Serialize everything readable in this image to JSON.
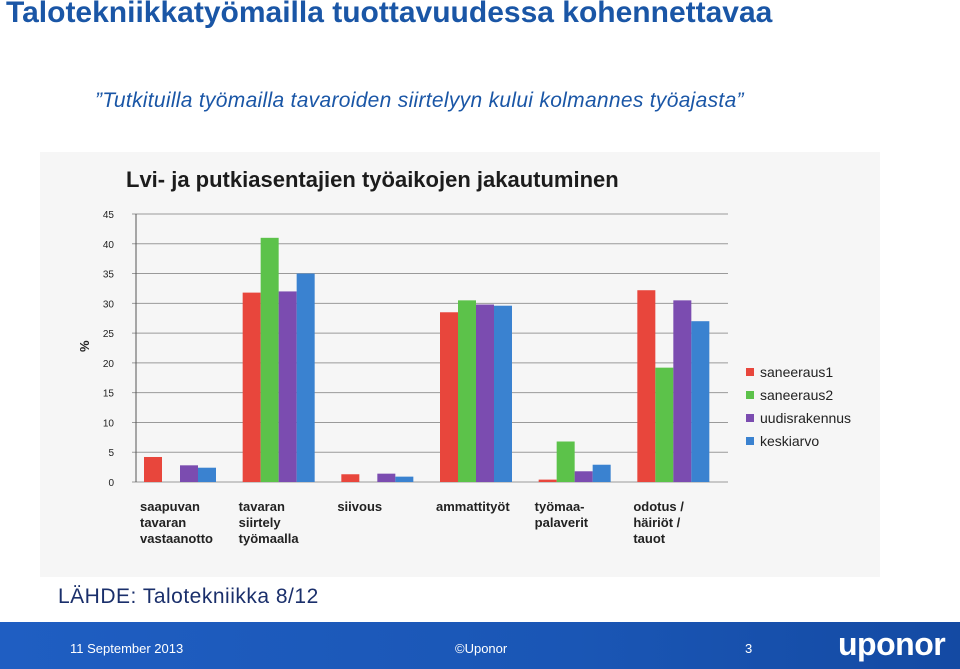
{
  "slide": {
    "title": "Talotekniikkatyömailla tuottavuudessa kohennettavaa",
    "quote": "”Tutkituilla työmailla tavaroiden siirtelyyn kului kolmannes työajasta”",
    "source": "LÄHDE: Talotekniikka 8/12"
  },
  "footer": {
    "date": "11 September 2013",
    "copyright": "©Uponor",
    "page": "3",
    "logo": "uponor"
  },
  "chart_data": {
    "type": "bar",
    "title": "Lvi- ja putkiasentajien työaikojen jakautuminen",
    "ylabel": "%",
    "ylim": [
      0,
      45
    ],
    "yticks": [
      0,
      5,
      10,
      15,
      20,
      25,
      30,
      35,
      40,
      45
    ],
    "categories": [
      [
        "saapuvan",
        "tavaran",
        "vastaanotto"
      ],
      [
        "tavaran",
        "siirtely",
        "työmaalla"
      ],
      [
        "siivous"
      ],
      [
        "ammattityöt"
      ],
      [
        "työmaa-",
        "palaverit"
      ],
      [
        "odotus /",
        "häiriöt /",
        "tauot"
      ]
    ],
    "series": [
      {
        "name": "saneeraus1",
        "color": "#e8463c",
        "values": [
          4.2,
          31.8,
          1.3,
          28.5,
          0.4,
          32.2
        ]
      },
      {
        "name": "saneeraus2",
        "color": "#5cc24a",
        "values": [
          0,
          41.0,
          0,
          30.5,
          6.8,
          19.2
        ]
      },
      {
        "name": "uudisrakennus",
        "color": "#7b4cb0",
        "values": [
          2.8,
          32.0,
          1.4,
          29.8,
          1.8,
          30.5
        ]
      },
      {
        "name": "keskiarvo",
        "color": "#3a82d0",
        "values": [
          2.4,
          35.0,
          0.9,
          29.6,
          2.9,
          27.0
        ]
      }
    ],
    "legend": "right"
  }
}
